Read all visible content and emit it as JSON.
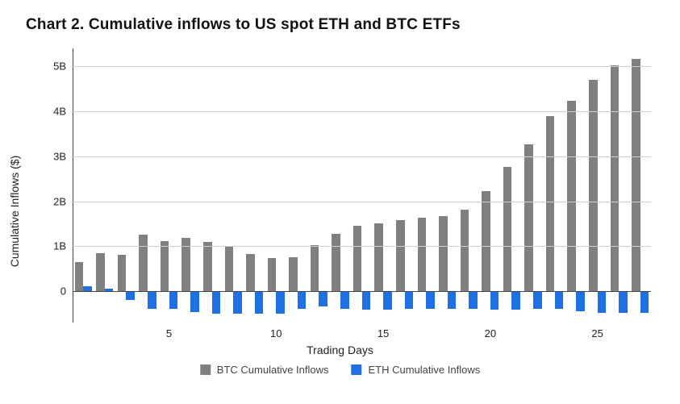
{
  "chart": {
    "type": "bar",
    "title": "Chart 2. Cumulative inflows to US spot ETH and BTC ETFs",
    "title_fontsize": 19,
    "title_fontweight": 700,
    "title_color": "#111111",
    "background_color": "#ffffff",
    "x_axis": {
      "label": "Trading Days",
      "label_fontsize": 14,
      "label_color": "#222222",
      "ticks": [
        5,
        10,
        15,
        20,
        25
      ],
      "tick_fontsize": 13,
      "tick_color": "#222222",
      "domain": [
        1,
        27
      ]
    },
    "y_axis": {
      "label": "Cumulative Inflows ($)",
      "label_fontsize": 14,
      "label_color": "#222222",
      "ticks": [
        0,
        1,
        2,
        3,
        4,
        5
      ],
      "tick_labels": [
        "0",
        "1B",
        "2B",
        "3B",
        "4B",
        "5B"
      ],
      "tick_fontsize": 13,
      "tick_color": "#222222",
      "domain": [
        -0.7,
        5.4
      ],
      "grid_color": "#cfcfcf",
      "axis_line_color": "#444444",
      "zero_line_color": "#444444"
    },
    "bar_group_gap": 0.2,
    "series": [
      {
        "name": "BTC Cumulative Inflows",
        "color": "#808080",
        "values": [
          0.65,
          0.85,
          0.8,
          1.25,
          1.12,
          1.18,
          1.1,
          0.98,
          0.83,
          0.74,
          0.76,
          1.02,
          1.27,
          1.45,
          1.5,
          1.58,
          1.63,
          1.67,
          1.82,
          2.23,
          2.77,
          3.27,
          3.9,
          4.23,
          4.7,
          5.03,
          5.17
        ]
      },
      {
        "name": "ETH Cumulative Inflows",
        "color": "#1f6fe5",
        "values": [
          0.1,
          0.05,
          -0.2,
          -0.4,
          -0.4,
          -0.47,
          -0.5,
          -0.5,
          -0.5,
          -0.5,
          -0.4,
          -0.35,
          -0.4,
          -0.42,
          -0.42,
          -0.4,
          -0.4,
          -0.4,
          -0.4,
          -0.42,
          -0.42,
          -0.4,
          -0.4,
          -0.45,
          -0.48,
          -0.48,
          -0.48
        ]
      }
    ],
    "legend": {
      "position": "bottom-center",
      "fontsize": 13,
      "color": "#444444",
      "items": [
        {
          "label": "BTC Cumulative Inflows",
          "color": "#808080"
        },
        {
          "label": "ETH Cumulative Inflows",
          "color": "#1f6fe5"
        }
      ]
    }
  }
}
